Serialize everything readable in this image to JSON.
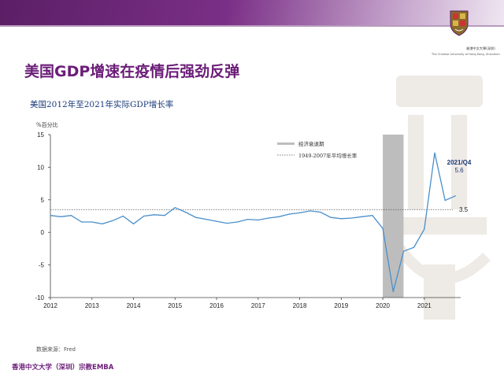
{
  "slide": {
    "title": "美国GDP增速在疫情后强劲反弹",
    "source": "数据来源：Fred",
    "footer_school": "香港中文大学（深圳）",
    "footer_brand": "宗教EMBA"
  },
  "logo": {
    "cn_text": "香港中文大學(深圳)",
    "en_text": "The Chinese University of Hong Kong, Shenzhen"
  },
  "chart_data": {
    "type": "line",
    "title": "美国2012年至2021年实际GDP增长率",
    "ylabel": "%百分比",
    "xlabel": "",
    "ylim": [
      -10,
      15
    ],
    "yticks": [
      15,
      10,
      5,
      0,
      -5,
      -10
    ],
    "xticks": [
      "2012",
      "2013",
      "2014",
      "2015",
      "2016",
      "2017",
      "2018",
      "2019",
      "2020",
      "2021"
    ],
    "grid": false,
    "legend": {
      "placement": "top-right",
      "recession_label": "经济衰退期",
      "average_label": "1949-2007年平均增长率"
    },
    "recession": {
      "start": "2020Q1",
      "end": "2020Q2"
    },
    "average_value": 3.5,
    "average_label": "3.5",
    "annotation": {
      "label": "2021/Q4",
      "value": "5.6"
    },
    "color": "#4a8fca",
    "series": [
      {
        "x": [
          "2012Q1",
          "2012Q2",
          "2012Q3",
          "2012Q4",
          "2013Q1",
          "2013Q2",
          "2013Q3",
          "2013Q4",
          "2014Q1",
          "2014Q2",
          "2014Q3",
          "2014Q4",
          "2015Q1",
          "2015Q2",
          "2015Q3",
          "2015Q4",
          "2016Q1",
          "2016Q2",
          "2016Q3",
          "2016Q4",
          "2017Q1",
          "2017Q2",
          "2017Q3",
          "2017Q4",
          "2018Q1",
          "2018Q2",
          "2018Q3",
          "2018Q4",
          "2019Q1",
          "2019Q2",
          "2019Q3",
          "2019Q4",
          "2020Q1",
          "2020Q2",
          "2020Q3",
          "2020Q4",
          "2021Q1",
          "2021Q2",
          "2021Q3",
          "2021Q4"
        ],
        "values": [
          2.6,
          2.4,
          2.6,
          1.6,
          1.6,
          1.3,
          1.8,
          2.5,
          1.3,
          2.5,
          2.7,
          2.6,
          3.8,
          3.1,
          2.3,
          2.0,
          1.7,
          1.4,
          1.6,
          2.0,
          1.9,
          2.2,
          2.4,
          2.8,
          3.0,
          3.3,
          3.1,
          2.3,
          2.1,
          2.2,
          2.4,
          2.6,
          0.6,
          -9.1,
          -2.9,
          -2.3,
          0.5,
          12.2,
          4.9,
          5.6
        ]
      }
    ]
  }
}
